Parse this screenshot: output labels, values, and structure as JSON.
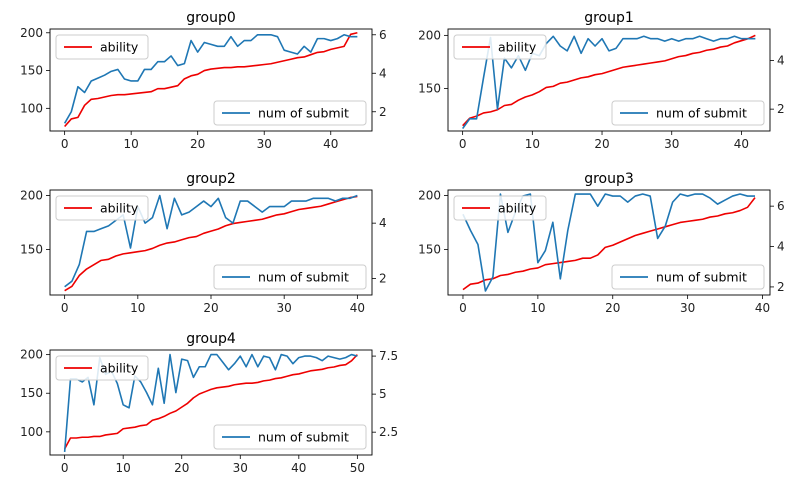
{
  "chart_data": [
    {
      "type": "line",
      "title": "group0",
      "x_range": [
        0,
        44
      ],
      "xticks": [
        0,
        10,
        20,
        30,
        40
      ],
      "xlim": [
        -2.2,
        46.2
      ],
      "left_axis": {
        "ylim": [
          70,
          205
        ],
        "ticks": [
          100,
          150,
          200
        ]
      },
      "right_axis": {
        "ylim": [
          1.0,
          6.3
        ],
        "ticks": [
          2,
          4,
          6
        ]
      },
      "series": [
        {
          "name": "ability",
          "color": "#ee0000",
          "axis": "left",
          "values": [
            76,
            86,
            88,
            104,
            112,
            113,
            115,
            117,
            118,
            118,
            119,
            120,
            121,
            122,
            126,
            126,
            128,
            130,
            139,
            143,
            145,
            150,
            152,
            153,
            154,
            154,
            155,
            155,
            156,
            157,
            158,
            159,
            161,
            163,
            165,
            167,
            168,
            171,
            174,
            175,
            178,
            180,
            182,
            198,
            200
          ]
        },
        {
          "name": "num of submit",
          "color": "#1f77b4",
          "axis": "right",
          "values": [
            1.4,
            2.0,
            3.3,
            3.0,
            3.6,
            3.75,
            3.9,
            4.1,
            4.2,
            3.7,
            3.6,
            3.6,
            4.2,
            4.2,
            4.6,
            4.6,
            4.9,
            4.4,
            4.5,
            5.7,
            5.1,
            5.6,
            5.5,
            5.4,
            5.4,
            5.9,
            5.4,
            5.7,
            5.7,
            6.0,
            6.0,
            6.0,
            5.9,
            5.2,
            5.1,
            5.0,
            5.4,
            5.1,
            5.8,
            5.8,
            5.7,
            5.8,
            6.0,
            5.9,
            5.9
          ]
        }
      ],
      "legends": [
        {
          "label": "ability",
          "place": "top-left"
        },
        {
          "label": "num of submit",
          "place": "bottom-right"
        }
      ]
    },
    {
      "type": "line",
      "title": "group1",
      "x_range": [
        0,
        42
      ],
      "xticks": [
        0,
        10,
        20,
        30,
        40
      ],
      "xlim": [
        -2.1,
        44.1
      ],
      "left_axis": {
        "ylim": [
          110,
          206
        ],
        "ticks": [
          150,
          200
        ]
      },
      "right_axis": {
        "ylim": [
          1.1,
          5.3
        ],
        "ticks": [
          2,
          4
        ]
      },
      "series": [
        {
          "name": "ability",
          "color": "#ee0000",
          "axis": "left",
          "values": [
            115,
            122,
            124,
            127,
            128,
            130,
            134,
            135,
            139,
            142,
            144,
            147,
            151,
            152,
            155,
            156,
            158,
            160,
            161,
            163,
            164,
            166,
            168,
            170,
            171,
            172,
            173,
            174,
            175,
            176,
            178,
            180,
            181,
            183,
            184,
            186,
            187,
            189,
            190,
            193,
            195,
            197,
            200
          ]
        },
        {
          "name": "num of submit",
          "color": "#1f77b4",
          "axis": "right",
          "values": [
            1.2,
            1.6,
            1.6,
            3.3,
            4.95,
            2.0,
            4.1,
            3.7,
            4.2,
            3.6,
            4.3,
            4.2,
            4.7,
            5.0,
            4.6,
            4.4,
            5.0,
            4.3,
            4.9,
            4.6,
            4.9,
            4.4,
            4.5,
            4.9,
            4.9,
            4.9,
            5.0,
            4.9,
            4.9,
            4.8,
            4.9,
            4.8,
            4.9,
            4.9,
            5.0,
            4.9,
            4.8,
            4.9,
            4.9,
            5.0,
            4.9,
            4.9,
            4.9
          ]
        }
      ],
      "legends": [
        {
          "label": "ability",
          "place": "top-left"
        },
        {
          "label": "num of submit",
          "place": "bottom-right"
        }
      ]
    },
    {
      "type": "line",
      "title": "group2",
      "x_range": [
        0,
        40
      ],
      "xticks": [
        0,
        10,
        20,
        30,
        40
      ],
      "xlim": [
        -2.0,
        42.0
      ],
      "left_axis": {
        "ylim": [
          108,
          205
        ],
        "ticks": [
          150,
          200
        ]
      },
      "right_axis": {
        "ylim": [
          1.4,
          5.2
        ],
        "ticks": [
          2,
          4
        ]
      },
      "series": [
        {
          "name": "ability",
          "color": "#ee0000",
          "axis": "left",
          "values": [
            112,
            116,
            126,
            132,
            136,
            140,
            141,
            144,
            146,
            147,
            148,
            149,
            151,
            154,
            156,
            157,
            159,
            161,
            162,
            165,
            167,
            169,
            172,
            174,
            175,
            176,
            177,
            178,
            180,
            182,
            183,
            185,
            187,
            188,
            189,
            190,
            192,
            194,
            196,
            198,
            199
          ]
        },
        {
          "name": "num of submit",
          "color": "#1f77b4",
          "axis": "right",
          "values": [
            1.7,
            1.9,
            2.5,
            3.7,
            3.7,
            3.8,
            3.9,
            4.1,
            4.3,
            3.1,
            4.6,
            4.0,
            4.2,
            5.0,
            3.8,
            4.9,
            4.3,
            4.4,
            4.6,
            4.8,
            4.6,
            4.9,
            4.2,
            4.0,
            4.8,
            4.8,
            4.6,
            4.4,
            4.6,
            4.6,
            4.6,
            4.8,
            4.8,
            4.8,
            4.9,
            4.9,
            4.9,
            4.8,
            4.9,
            4.9,
            5.0
          ]
        }
      ],
      "legends": [
        {
          "label": "ability",
          "place": "top-left"
        },
        {
          "label": "num of submit",
          "place": "bottom-right"
        }
      ]
    },
    {
      "type": "line",
      "title": "group3",
      "x_range": [
        0,
        39
      ],
      "xticks": [
        0,
        10,
        20,
        30,
        40
      ],
      "xlim": [
        -2.0,
        41.0
      ],
      "left_axis": {
        "ylim": [
          108,
          205
        ],
        "ticks": [
          150,
          200
        ]
      },
      "right_axis": {
        "ylim": [
          1.6,
          6.8
        ],
        "ticks": [
          2,
          4,
          6
        ]
      },
      "series": [
        {
          "name": "ability",
          "color": "#ee0000",
          "axis": "left",
          "values": [
            113,
            118,
            119,
            122,
            123,
            126,
            127,
            129,
            130,
            132,
            133,
            136,
            137,
            138,
            139,
            140,
            142,
            142,
            145,
            152,
            154,
            157,
            160,
            163,
            165,
            167,
            169,
            171,
            173,
            175,
            176,
            177,
            178,
            180,
            181,
            183,
            184,
            186,
            189,
            198
          ]
        },
        {
          "name": "num of submit",
          "color": "#1f77b4",
          "axis": "right",
          "values": [
            5.6,
            4.8,
            4.1,
            1.8,
            2.5,
            6.6,
            4.7,
            5.7,
            6.5,
            6.6,
            3.2,
            3.8,
            5.2,
            2.4,
            4.8,
            6.6,
            6.6,
            6.6,
            6.0,
            6.6,
            6.5,
            6.5,
            6.2,
            6.5,
            6.6,
            6.5,
            4.4,
            5.0,
            6.2,
            6.6,
            6.5,
            6.6,
            6.6,
            6.4,
            6.1,
            6.3,
            6.5,
            6.6,
            6.5,
            6.5
          ]
        }
      ],
      "legends": [
        {
          "label": "ability",
          "place": "top-left"
        },
        {
          "label": "num of submit",
          "place": "bottom-right"
        }
      ]
    },
    {
      "type": "line",
      "title": "group4",
      "x_range": [
        0,
        50
      ],
      "xticks": [
        0,
        10,
        20,
        30,
        40,
        50
      ],
      "xlim": [
        -2.5,
        52.5
      ],
      "left_axis": {
        "ylim": [
          70,
          206
        ],
        "ticks": [
          100,
          150,
          200
        ]
      },
      "right_axis": {
        "ylim": [
          1.0,
          7.9
        ],
        "ticks": [
          2.5,
          5.0,
          7.5
        ]
      },
      "series": [
        {
          "name": "ability",
          "color": "#ee0000",
          "axis": "left",
          "values": [
            78,
            92,
            92,
            93,
            93,
            94,
            94,
            96,
            97,
            98,
            104,
            105,
            106,
            108,
            109,
            115,
            117,
            120,
            124,
            127,
            132,
            137,
            144,
            149,
            152,
            155,
            157,
            158,
            159,
            161,
            162,
            163,
            163,
            164,
            166,
            167,
            169,
            170,
            172,
            174,
            175,
            177,
            179,
            180,
            181,
            183,
            184,
            186,
            187,
            192,
            200
          ]
        },
        {
          "name": "num of submit",
          "color": "#1f77b4",
          "axis": "right",
          "values": [
            1.2,
            6.0,
            6.0,
            5.8,
            6.1,
            4.3,
            7.4,
            6.3,
            6.5,
            5.7,
            4.3,
            4.1,
            6.2,
            5.8,
            5.1,
            4.3,
            6.7,
            4.4,
            7.6,
            5.1,
            7.3,
            7.2,
            6.1,
            6.8,
            6.8,
            7.6,
            7.6,
            7.1,
            6.6,
            7.0,
            7.5,
            6.8,
            7.6,
            6.8,
            7.5,
            7.4,
            6.6,
            7.6,
            7.5,
            7.0,
            7.4,
            7.5,
            7.5,
            7.4,
            7.2,
            7.5,
            7.4,
            7.3,
            7.4,
            7.6,
            7.5
          ]
        }
      ],
      "legends": [
        {
          "label": "ability",
          "place": "top-left"
        },
        {
          "label": "num of submit",
          "place": "bottom-right"
        }
      ]
    }
  ]
}
